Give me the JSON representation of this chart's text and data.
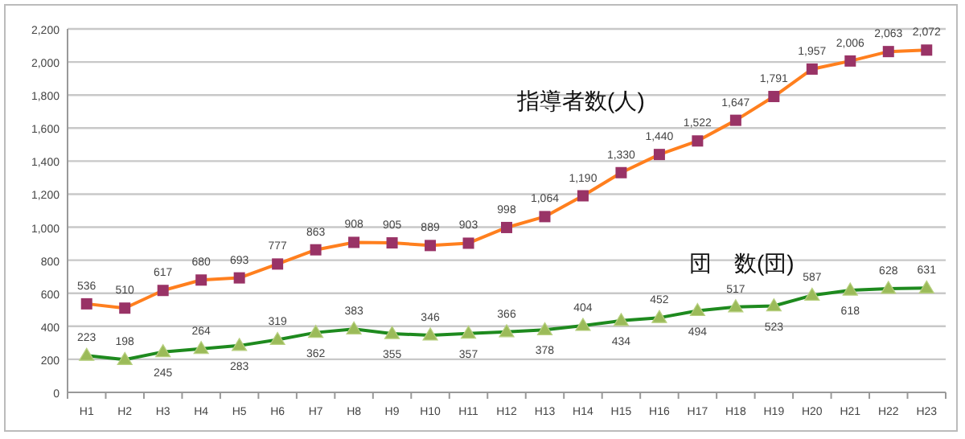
{
  "chart_data": {
    "type": "line",
    "categories": [
      "H1",
      "H2",
      "H3",
      "H4",
      "H5",
      "H6",
      "H7",
      "H8",
      "H9",
      "H10",
      "H11",
      "H12",
      "H13",
      "H14",
      "H15",
      "H16",
      "H17",
      "H18",
      "H19",
      "H20",
      "H21",
      "H22",
      "H23"
    ],
    "series": [
      {
        "name": "指導者数(人)",
        "color": "#ff7f1e",
        "marker": "square",
        "values": [
          536,
          510,
          617,
          680,
          693,
          777,
          863,
          908,
          905,
          889,
          903,
          998,
          1064,
          1190,
          1330,
          1440,
          1522,
          1647,
          1791,
          1957,
          2006,
          2063,
          2072
        ],
        "value_labels": [
          "536",
          "510",
          "617",
          "680",
          "693",
          "777",
          "863",
          "908",
          "905",
          "889",
          "903",
          "998",
          "1,064",
          "1,190",
          "1,330",
          "1,440",
          "1,522",
          "1,647",
          "1,791",
          "1,957",
          "2,006",
          "2,063",
          "2,072"
        ]
      },
      {
        "name": "団　数(団)",
        "color": "#1e8a1e",
        "marker": "triangle",
        "values": [
          223,
          198,
          245,
          264,
          283,
          319,
          362,
          383,
          355,
          346,
          357,
          366,
          378,
          404,
          434,
          452,
          494,
          517,
          523,
          587,
          618,
          628,
          631
        ],
        "value_labels": [
          "223",
          "198",
          "245",
          "264",
          "283",
          "319",
          "362",
          "383",
          "355",
          "346",
          "357",
          "366",
          "378",
          "404",
          "434",
          "452",
          "494",
          "517",
          "523",
          "587",
          "618",
          "628",
          "631"
        ]
      }
    ],
    "ylim": [
      0,
      2200
    ],
    "yticks": [
      0,
      {
        "value": 200,
        "label": "200"
      },
      {
        "value": 400,
        "label": "400"
      },
      {
        "value": 600,
        "label": "600"
      },
      {
        "value": 800,
        "label": "800"
      },
      {
        "value": 1000,
        "label": "1,000"
      },
      {
        "value": 1200,
        "label": "1,200"
      },
      {
        "value": 1400,
        "label": "1,400"
      },
      {
        "value": 1600,
        "label": "1,600"
      },
      {
        "value": 1800,
        "label": "1,800"
      },
      {
        "value": 2000,
        "label": "2,000"
      },
      {
        "value": 2200,
        "label": "2,200"
      }
    ],
    "grid": "y",
    "line_style": "solid"
  }
}
